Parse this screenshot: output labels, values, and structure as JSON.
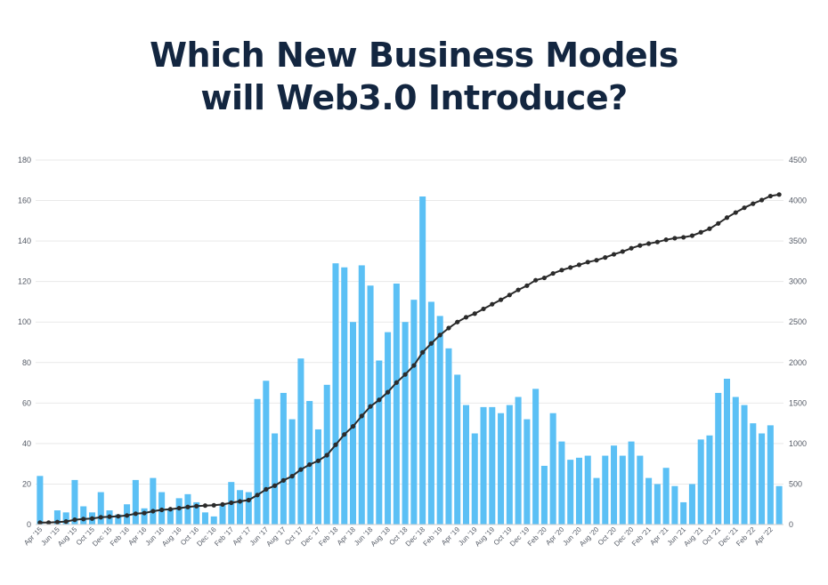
{
  "title_line1": "Which New Business Models",
  "title_line2": "will Web3.0 Introduce?",
  "colors": {
    "bar": "#5bc0f5",
    "line": "#2b2b2b",
    "grid": "#e9e9e9",
    "title": "#132640"
  },
  "chart_data": {
    "type": "bar",
    "title": "Which New Business Models will Web3.0 Introduce?",
    "categories": [
      "Apr '15",
      "May '15",
      "Jun '15",
      "Jul '15",
      "Aug '15",
      "Sep '15",
      "Oct '15",
      "Nov '15",
      "Dec '15",
      "Jan '16",
      "Feb '16",
      "Mar '16",
      "Apr '16",
      "May '16",
      "Jun '16",
      "Jul '16",
      "Aug '16",
      "Sep '16",
      "Oct '16",
      "Nov '16",
      "Dec '16",
      "Jan '17",
      "Feb '17",
      "Mar '17",
      "Apr '17",
      "May '17",
      "Jun '17",
      "Jul '17",
      "Aug '17",
      "Sep '17",
      "Oct '17",
      "Nov '17",
      "Dec '17",
      "Jan '18",
      "Feb '18",
      "Mar '18",
      "Apr '18",
      "May '18",
      "Jun '18",
      "Jul '18",
      "Aug '18",
      "Sep '18",
      "Oct '18",
      "Nov '18",
      "Dec '18",
      "Jan '19",
      "Feb '19",
      "Mar '19",
      "Apr '19",
      "May '19",
      "Jun '19",
      "Jul '19",
      "Aug '19",
      "Sep '19",
      "Oct '19",
      "Nov '19",
      "Dec '19",
      "Jan '20",
      "Feb '20",
      "Mar '20",
      "Apr '20",
      "May '20",
      "Jun '20",
      "Jul '20",
      "Aug '20",
      "Sep '20",
      "Oct '20",
      "Nov '20",
      "Dec '20",
      "Jan '21",
      "Feb '21",
      "Mar '21",
      "Apr '21",
      "May '21",
      "Jun '21",
      "Jul '21",
      "Aug '21",
      "Sep '21",
      "Oct '21",
      "Nov '21",
      "Dec '21",
      "Jan '22",
      "Feb '22",
      "Mar '22",
      "Apr '22",
      "May '22"
    ],
    "x_tick_labels": [
      "Apr '15",
      "Jun '15",
      "Aug '15",
      "Oct '15",
      "Dec '15",
      "Feb '16",
      "Apr '16",
      "Jun '16",
      "Aug '16",
      "Oct '16",
      "Dec '16",
      "Feb '17",
      "Apr '17",
      "Jun '17",
      "Aug '17",
      "Oct '17",
      "Dec '17",
      "Feb '18",
      "Apr '18",
      "Jun '18",
      "Aug '18",
      "Oct '18",
      "Dec '18",
      "Feb '19",
      "Apr '19",
      "Jun '19",
      "Aug '19",
      "Oct '19",
      "Dec '19",
      "Feb '20",
      "Apr '20",
      "Jun '20",
      "Aug '20",
      "Oct '20",
      "Dec '20",
      "Feb '21",
      "Apr '21",
      "Jun '21",
      "Aug '21",
      "Oct '21",
      "Dec '21",
      "Feb '22",
      "Apr '22"
    ],
    "series": [
      {
        "type": "bar",
        "axis": "left",
        "values": [
          24,
          0,
          7,
          6,
          22,
          9,
          6,
          16,
          7,
          5,
          10,
          22,
          8,
          23,
          16,
          8,
          13,
          15,
          11,
          6,
          4,
          10,
          21,
          17,
          16,
          62,
          71,
          45,
          65,
          52,
          82,
          61,
          47,
          69,
          129,
          127,
          100,
          128,
          118,
          81,
          95,
          119,
          100,
          111,
          162,
          110,
          103,
          87,
          74,
          59,
          45,
          58,
          58,
          55,
          59,
          63,
          52,
          67,
          29,
          55,
          41,
          32,
          33,
          34,
          23,
          34,
          39,
          34,
          41,
          34,
          23,
          20,
          28,
          19,
          11,
          20,
          42,
          44,
          65,
          72,
          63,
          59,
          50,
          45,
          49,
          19
        ]
      },
      {
        "type": "line",
        "axis": "right",
        "values": [
          24,
          24,
          31,
          37,
          59,
          68,
          74,
          90,
          97,
          102,
          112,
          134,
          142,
          165,
          181,
          189,
          202,
          217,
          228,
          234,
          238,
          248,
          269,
          286,
          302,
          364,
          435,
          480,
          545,
          597,
          679,
          740,
          787,
          856,
          985,
          1112,
          1212,
          1340,
          1458,
          1539,
          1634,
          1753,
          1853,
          1964,
          2126,
          2236,
          2339,
          2426,
          2500,
          2559,
          2604,
          2662,
          2720,
          2775,
          2834,
          2897,
          2949,
          3016,
          3045,
          3100,
          3141,
          3173,
          3206,
          3240,
          3263,
          3297,
          3336,
          3370,
          3411,
          3445,
          3468,
          3488,
          3516,
          3535,
          3546,
          3566,
          3608,
          3652,
          3717,
          3789,
          3852,
          3911,
          3961,
          4006,
          4055,
          4074
        ]
      }
    ],
    "y_left_ticks": [
      "0",
      "20",
      "40",
      "60",
      "80",
      "100",
      "120",
      "140",
      "160",
      "180"
    ],
    "y_right_ticks": [
      "0",
      "500",
      "1000",
      "1500",
      "2000",
      "2500",
      "3000",
      "3500",
      "4000",
      "4500"
    ],
    "ylim_left": [
      0,
      180
    ],
    "ylim_right": [
      0,
      4500
    ],
    "grid": true,
    "xlabel": "",
    "ylabel": ""
  }
}
